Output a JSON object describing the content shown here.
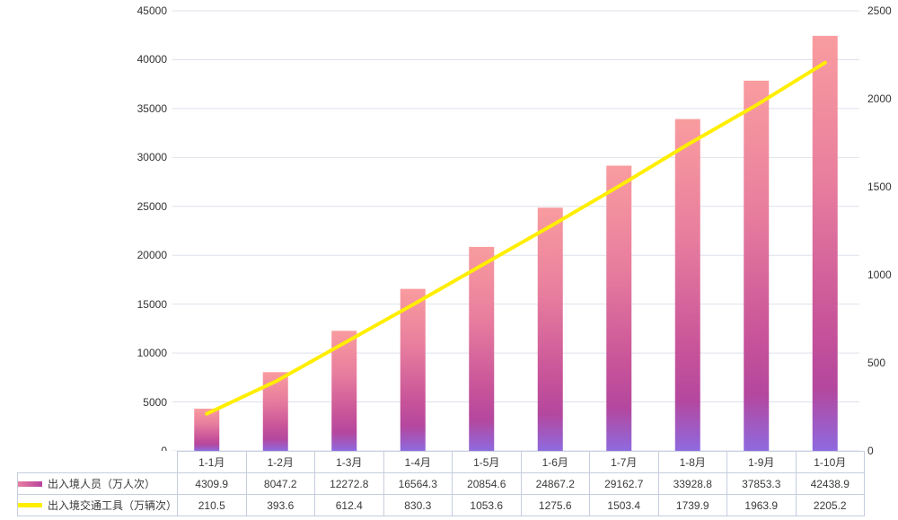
{
  "chart_data": {
    "type": "combo",
    "title": "",
    "categories": [
      "1-1月",
      "1-2月",
      "1-3月",
      "1-4月",
      "1-5月",
      "1-6月",
      "1-7月",
      "1-8月",
      "1-9月",
      "1-10月"
    ],
    "series": [
      {
        "name": "出入境人员（万人次）",
        "type": "bar",
        "axis": "left",
        "values": [
          4309.9,
          8047.2,
          12272.8,
          16564.3,
          20854.6,
          24867.2,
          29162.7,
          33928.8,
          37853.3,
          42438.9
        ],
        "labels": [
          "4309.9",
          "8047.2",
          "12272.8",
          "16564.3",
          "20854.6",
          "24867.2",
          "29162.7",
          "33928.8",
          "37853.3",
          "42438.9"
        ],
        "gradient": [
          {
            "offset": 0,
            "color": "#f99c9f"
          },
          {
            "offset": 0.35,
            "color": "#e87e9e"
          },
          {
            "offset": 0.7,
            "color": "#c75399"
          },
          {
            "offset": 0.85,
            "color": "#b4479e"
          },
          {
            "offset": 1,
            "color": "#8e6adf"
          }
        ]
      },
      {
        "name": "出入境交通工具（万辆次）",
        "type": "line",
        "axis": "right",
        "values": [
          210.5,
          393.6,
          612.4,
          830.3,
          1053.6,
          1275.6,
          1503.4,
          1739.9,
          1963.9,
          2205.2
        ],
        "labels": [
          "210.5",
          "393.6",
          "612.4",
          "830.3",
          "1053.6",
          "1275.6",
          "1503.4",
          "1739.9",
          "1963.9",
          "2205.2"
        ],
        "color": "#ffee00"
      }
    ],
    "left_axis": {
      "min": 0,
      "max": 45000,
      "step": 5000,
      "ticks": [
        "45000",
        "40000",
        "35000",
        "30000",
        "25000",
        "20000",
        "15000",
        "10000",
        "5000",
        "0"
      ]
    },
    "right_axis": {
      "min": 0,
      "max": 2500,
      "step": 500,
      "ticks": [
        "2500",
        "2000",
        "1500",
        "1000",
        "500",
        "0"
      ]
    },
    "grid": "horizontal",
    "legend_position": "table-left"
  },
  "colors": {
    "grid": "#dde2ec",
    "table_border": "#c5cdde",
    "text": "#333333",
    "line": "#ffee00",
    "bar_swatch_left": "#e87da1",
    "bar_swatch_right": "#b8439c"
  }
}
